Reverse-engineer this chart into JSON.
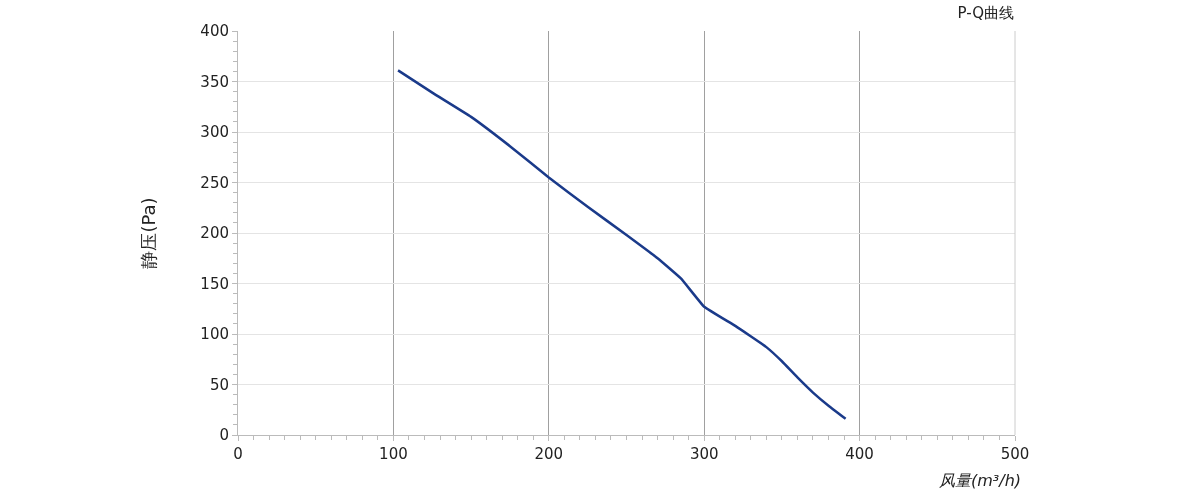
{
  "chart_data": {
    "type": "line",
    "title": "P-Q曲线",
    "xlabel": "风量(m³/h)",
    "ylabel": "静压(Pa)",
    "x": [
      103,
      125,
      150,
      175,
      200,
      225,
      250,
      270,
      285,
      300,
      320,
      340,
      350,
      360,
      370,
      380,
      391
    ],
    "series": [
      {
        "color": "#1a3a8a",
        "values": [
          361,
          339,
          315,
          286,
          255,
          226,
          198,
          175,
          155,
          127,
          108,
          87,
          73,
          57,
          42,
          29,
          16
        ]
      }
    ],
    "xlim": [
      0,
      500
    ],
    "xticks": [
      0,
      100,
      200,
      300,
      400,
      500
    ],
    "ylim": [
      0,
      400
    ],
    "yticks": [
      0,
      50,
      100,
      150,
      200,
      250,
      300,
      350,
      400
    ],
    "grid": true,
    "line_style": "solid",
    "marker": "none"
  }
}
